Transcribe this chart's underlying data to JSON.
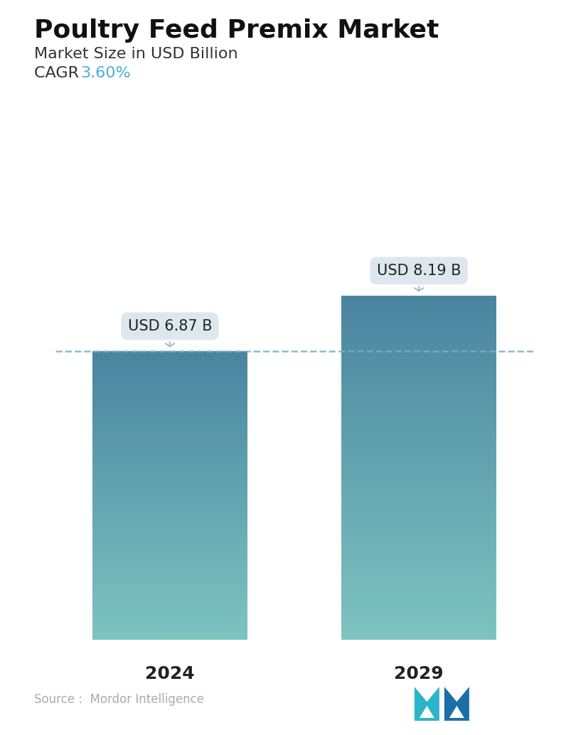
{
  "title": "Poultry Feed Premix Market",
  "subtitle": "Market Size in USD Billion",
  "cagr_label": "CAGR  ",
  "cagr_value": "3.60%",
  "cagr_color": "#4BAED6",
  "categories": [
    "2024",
    "2029"
  ],
  "values": [
    6.87,
    8.19
  ],
  "bar_labels": [
    "USD 6.87 B",
    "USD 8.19 B"
  ],
  "bar_top_color": "#4A85A0",
  "bar_bottom_color": "#7EC4C1",
  "dashed_line_color": "#7AAFC8",
  "dashed_line_value": 6.87,
  "source_text": "Source :  Mordor Intelligence",
  "source_color": "#AAAAAA",
  "background_color": "#FFFFFF",
  "ylim": [
    0,
    10.5
  ],
  "title_fontsize": 26,
  "subtitle_fontsize": 16,
  "cagr_fontsize": 16,
  "xlabel_fontsize": 18,
  "label_fontsize": 15,
  "logo_teal": "#2BB5C8",
  "logo_blue": "#1B6FA8"
}
